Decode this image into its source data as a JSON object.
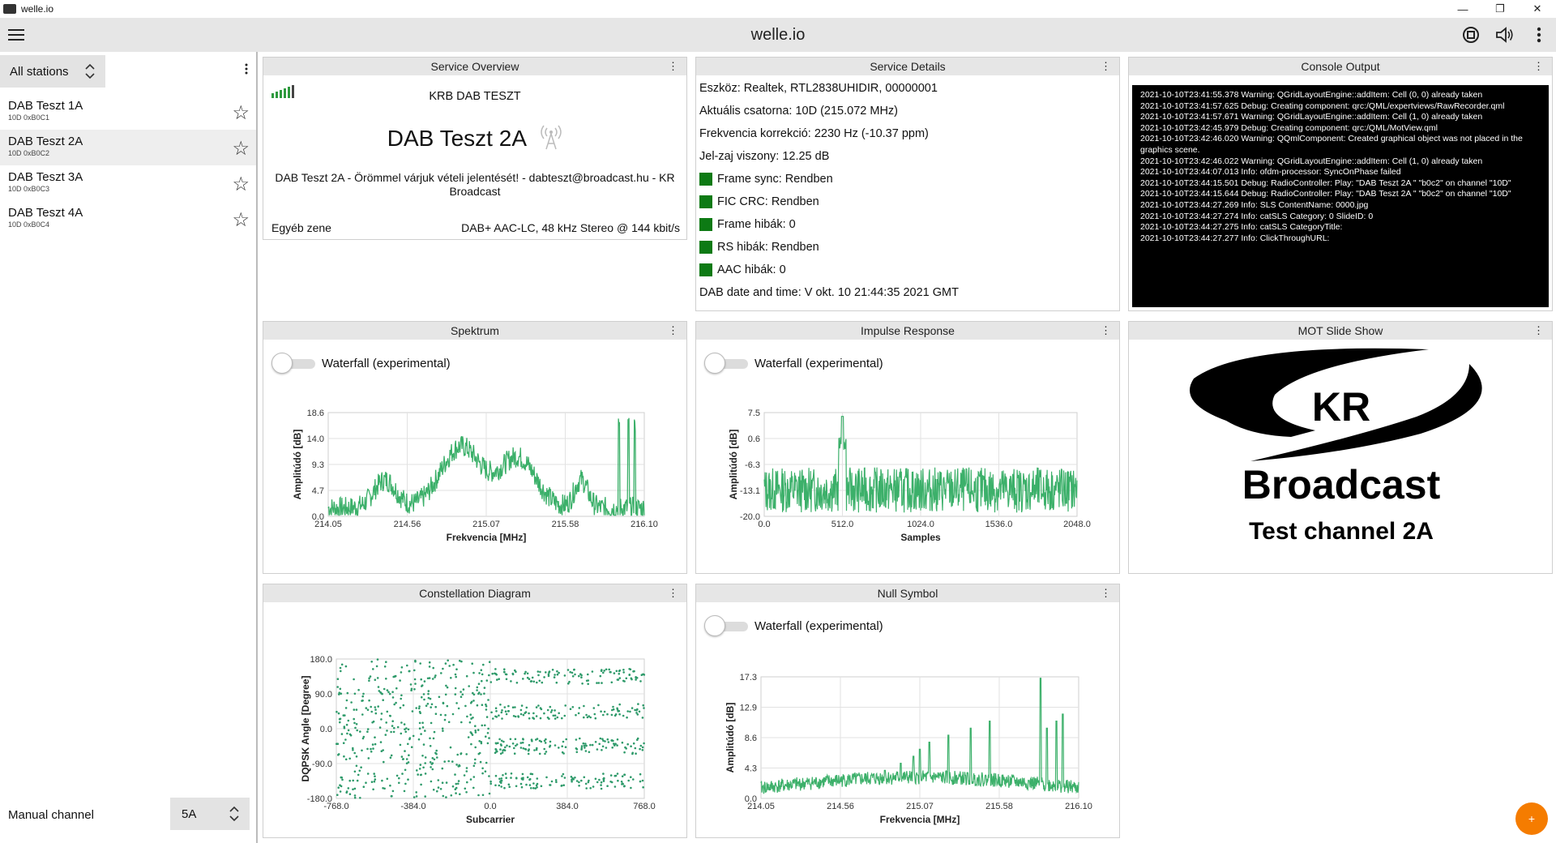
{
  "window": {
    "title": "welle.io",
    "minimize": "—",
    "restore": "❐",
    "close": "✕"
  },
  "header": {
    "title": "welle.io",
    "menu_icon": "hamburger-icon"
  },
  "sidebar": {
    "station_filter": "All stations",
    "stations": [
      {
        "name": "DAB Teszt 1A",
        "sub": "10D 0xB0C1"
      },
      {
        "name": "DAB Teszt 2A",
        "sub": "10D 0xB0C2"
      },
      {
        "name": "DAB Teszt 3A",
        "sub": "10D 0xB0C3"
      },
      {
        "name": "DAB Teszt 4A",
        "sub": "10D 0xB0C4"
      }
    ],
    "manual_label": "Manual channel",
    "manual_value": "5A"
  },
  "overview": {
    "title": "Service Overview",
    "ensemble": "KRB DAB TESZT",
    "station": "DAB Teszt 2A",
    "dls": "DAB Teszt 2A - Örömmel várjuk vételi jelentését! - dabteszt@broadcast.hu - KR Broadcast",
    "genre": "Egyéb zene",
    "codec": "DAB+ AAC-LC, 48 kHz Stereo @ 144 kbit/s"
  },
  "details": {
    "title": "Service Details",
    "device": "Eszköz: Realtek, RTL2838UHIDIR, 00000001",
    "channel": "Aktuális csatorna: 10D (215.072 MHz)",
    "freqcorr": "Frekvencia korrekció: 2230 Hz (-10.37 ppm)",
    "snr": "Jel-zaj viszony: 12.25 dB",
    "frame_sync": "Frame sync: Rendben",
    "fic_crc": "FIC CRC: Rendben",
    "frame_errors": "Frame hibák: 0",
    "rs_errors": "RS hibák: Rendben",
    "aac_errors": "AAC hibák: 0",
    "datetime": "DAB date and time: V okt. 10 21:44:35 2021 GMT",
    "status_color": "#0d7a14"
  },
  "console": {
    "title": "Console Output",
    "lines": [
      "2021-10-10T23:41:55.378 Warning: QGridLayoutEngine::addItem: Cell (0, 0) already taken",
      "2021-10-10T23:41:57.625 Debug: Creating component: qrc:/QML/expertviews/RawRecorder.qml",
      "2021-10-10T23:41:57.671 Warning: QGridLayoutEngine::addItem: Cell (1, 0) already taken",
      "2021-10-10T23:42:45.979 Debug: Creating component: qrc:/QML/MotView.qml",
      "2021-10-10T23:42:46.020 Warning: QQmlComponent: Created graphical object was not placed in the",
      "graphics scene.",
      "2021-10-10T23:42:46.022 Warning: QGridLayoutEngine::addItem: Cell (1, 0) already taken",
      "2021-10-10T23:44:07.013 Info: ofdm-processor: SyncOnPhase failed",
      "2021-10-10T23:44:15.501 Debug: RadioController: Play: \"DAB Teszt 2A    \" \"b0c2\" on channel \"10D\"",
      "2021-10-10T23:44:15.644 Debug: RadioController: Play: \"DAB Teszt 2A    \" \"b0c2\" on channel \"10D\"",
      "2021-10-10T23:44:27.269 Info: SLS ContentName: 0000.jpg",
      "2021-10-10T23:44:27.274 Info: catSLS Category: 0 SlideID: 0",
      "2021-10-10T23:44:27.275 Info: catSLS CategoryTitle:",
      "2021-10-10T23:44:27.277 Info: ClickThroughURL:"
    ]
  },
  "waterfall_label": "Waterfall (experimental)",
  "mot": {
    "title": "MOT Slide Show",
    "logo_initials": "KR",
    "logo_name": "Broadcast",
    "logo_sub": "Test channel 2A"
  },
  "charts": {
    "spectrum": {
      "title": "Spektrum",
      "chart_data": {
        "type": "line",
        "xlabel": "Frekvencia [MHz]",
        "ylabel": "Amplitúdó [dB]",
        "xlim": [
          214.05,
          216.1
        ],
        "ylim": [
          0.0,
          18.6
        ],
        "xticks": [
          "214.05",
          "214.56",
          "215.07",
          "215.58",
          "216.10"
        ],
        "yticks": [
          "0.0",
          "4.7",
          "9.3",
          "14.0",
          "18.6"
        ],
        "grid": true,
        "color": "#3cb06a"
      }
    },
    "impulse": {
      "title": "Impulse Response",
      "chart_data": {
        "type": "line",
        "xlabel": "Samples",
        "ylabel": "Amplitúdó [dB]",
        "xlim": [
          0.0,
          2048.0
        ],
        "ylim": [
          -20.0,
          7.5
        ],
        "xticks": [
          "0.0",
          "512.0",
          "1024.0",
          "1536.0",
          "2048.0"
        ],
        "yticks": [
          "-20.0",
          "-13.1",
          "-6.3",
          "0.6",
          "7.5"
        ],
        "grid": true,
        "color": "#3cb06a"
      }
    },
    "constellation": {
      "title": "Constellation Diagram",
      "chart_data": {
        "type": "scatter",
        "xlabel": "Subcarrier",
        "ylabel": "DQPSK Angle [Degree]",
        "xlim": [
          -768.0,
          768.0
        ],
        "ylim": [
          -180.0,
          180.0
        ],
        "xticks": [
          "-768.0",
          "-384.0",
          "0.0",
          "384.0",
          "768.0"
        ],
        "yticks": [
          "-180.0",
          "-90.0",
          "0.0",
          "90.0",
          "180.0"
        ],
        "grid": true,
        "color": "#2e9a6a"
      }
    },
    "nullsym": {
      "title": "Null Symbol",
      "chart_data": {
        "type": "line",
        "xlabel": "Frekvencia [MHz]",
        "ylabel": "Amplitúdó [dB]",
        "xlim": [
          214.05,
          216.1
        ],
        "ylim": [
          0.0,
          17.3
        ],
        "xticks": [
          "214.05",
          "214.56",
          "215.07",
          "215.58",
          "216.10"
        ],
        "yticks": [
          "0.0",
          "4.3",
          "8.6",
          "12.9",
          "17.3"
        ],
        "grid": true,
        "color": "#3cb06a"
      }
    }
  },
  "fab_label": "+"
}
